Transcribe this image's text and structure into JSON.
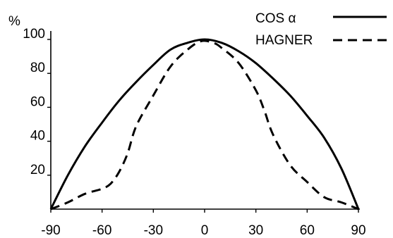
{
  "chart_data": {
    "type": "line",
    "title": "",
    "xlabel": "",
    "ylabel": "%",
    "xlim": [
      -90,
      90
    ],
    "ylim": [
      0,
      100
    ],
    "grid": false,
    "legend_position": "top-right",
    "x_ticks": [
      "-90",
      "-60",
      "-30",
      "0",
      "30",
      "60",
      "90"
    ],
    "y_ticks": [
      "20",
      "40",
      "60",
      "80",
      "100"
    ],
    "series": [
      {
        "name": "COS α",
        "style": "solid",
        "color": "#000000",
        "x": [
          -90,
          -80,
          -70,
          -60,
          -50,
          -40,
          -30,
          -20,
          -10,
          0,
          10,
          20,
          30,
          40,
          50,
          60,
          70,
          80,
          90
        ],
        "y": [
          0,
          20,
          37,
          51,
          64,
          75,
          85,
          94,
          98,
          100,
          98,
          93,
          86,
          77,
          67,
          55,
          42,
          24,
          0
        ]
      },
      {
        "name": "HAGNER",
        "style": "dashed",
        "color": "#000000",
        "x": [
          -90,
          -80,
          -70,
          -60,
          -55,
          -50,
          -45,
          -40,
          -30,
          -20,
          -10,
          -2,
          5,
          10,
          20,
          30,
          35,
          40,
          50,
          60,
          70,
          80,
          90
        ],
        "y": [
          0,
          4,
          9,
          12,
          15,
          22,
          33,
          49,
          67,
          84,
          94,
          99,
          98,
          95,
          86,
          70,
          58,
          44,
          26,
          16,
          7,
          4,
          0
        ]
      }
    ]
  }
}
